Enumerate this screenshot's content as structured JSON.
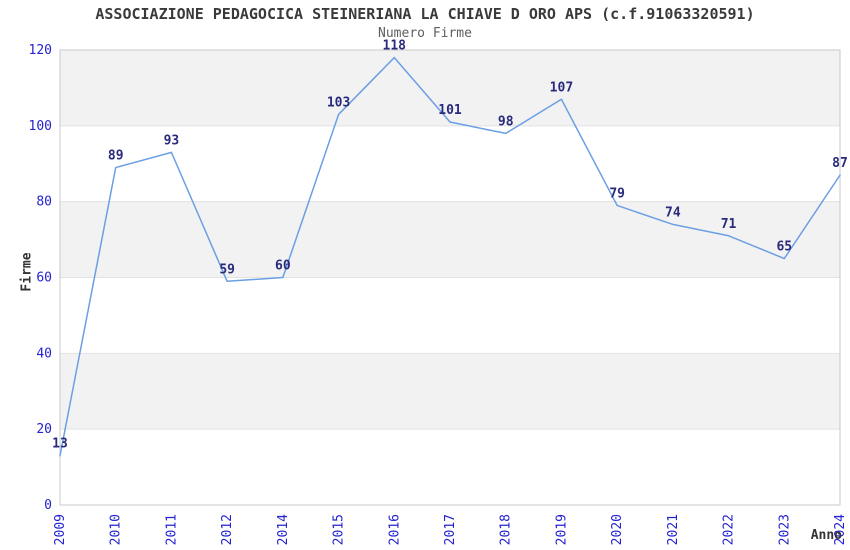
{
  "header": {
    "title": "ASSOCIAZIONE PEDAGOCICA STEINERIANA LA CHIAVE D ORO APS (c.f.91063320591)",
    "subtitle": "Numero Firme"
  },
  "chart_data": {
    "type": "line",
    "title": "ASSOCIAZIONE PEDAGOCICA STEINERIANA LA CHIAVE D ORO APS (c.f.91063320591)",
    "subtitle": "Numero Firme",
    "xlabel": "Anno",
    "ylabel": "Firme",
    "categories": [
      "2009",
      "2010",
      "2011",
      "2012",
      "2014",
      "2015",
      "2016",
      "2017",
      "2018",
      "2019",
      "2020",
      "2021",
      "2022",
      "2023",
      "2024"
    ],
    "values": [
      13,
      89,
      93,
      59,
      60,
      103,
      118,
      101,
      98,
      107,
      79,
      74,
      71,
      65,
      87
    ],
    "yticks": [
      0,
      20,
      40,
      60,
      80,
      100,
      120
    ],
    "ylim": [
      0,
      120
    ],
    "grid": "alternating-horizontal-bands",
    "legend": "none",
    "data_labels": "shown-above-points",
    "x_tick_rotation": -90,
    "colors": {
      "line": "#6b9fe4",
      "tick_label": "#2323cf",
      "data_label": "#2a2a7d",
      "band": "#f2f2f2",
      "gridline": "#e3e3e3",
      "plot_border": "#c9c9c9",
      "title": "#3a3a3a",
      "subtitle": "#5f5f5f",
      "axis_title": "#333333"
    }
  }
}
